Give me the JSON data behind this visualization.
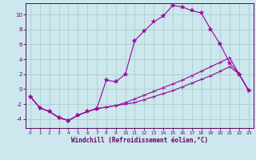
{
  "xlabel": "Windchill (Refroidissement éolien,°C)",
  "background_color": "#cce8ee",
  "grid_color": "#aacccc",
  "line_color": "#990099",
  "spine_color": "#660066",
  "xlim": [
    -0.5,
    23.5
  ],
  "ylim": [
    -5.2,
    11.5
  ],
  "yticks": [
    -4,
    -2,
    0,
    2,
    4,
    6,
    8,
    10
  ],
  "xticks": [
    0,
    1,
    2,
    3,
    4,
    5,
    6,
    7,
    8,
    9,
    10,
    11,
    12,
    13,
    14,
    15,
    16,
    17,
    18,
    19,
    20,
    21,
    22,
    23
  ],
  "line1_x": [
    0,
    1,
    2,
    3,
    4,
    5,
    6,
    7,
    8,
    9,
    10,
    11,
    12,
    13,
    14,
    15,
    16,
    17,
    18,
    19,
    20,
    21,
    22,
    23
  ],
  "line1_y": [
    -1.0,
    -2.5,
    -3.0,
    -3.8,
    -4.2,
    -3.5,
    -3.0,
    -2.6,
    1.2,
    1.0,
    2.0,
    6.5,
    7.8,
    9.0,
    9.8,
    11.2,
    11.0,
    10.5,
    10.2,
    8.0,
    6.0,
    3.5,
    2.0,
    -0.2
  ],
  "line2_x": [
    0,
    1,
    2,
    3,
    4,
    5,
    6,
    7,
    8,
    9,
    10,
    11,
    12,
    13,
    14,
    15,
    16,
    17,
    18,
    19,
    20,
    21,
    22,
    23
  ],
  "line2_y": [
    -1.0,
    -2.5,
    -3.0,
    -3.8,
    -4.2,
    -3.5,
    -3.0,
    -2.6,
    -2.4,
    -2.2,
    -2.0,
    -1.8,
    -1.4,
    -1.0,
    -0.6,
    -0.2,
    0.3,
    0.8,
    1.3,
    1.8,
    2.4,
    3.0,
    2.0,
    -0.2
  ],
  "line3_x": [
    0,
    1,
    2,
    3,
    4,
    5,
    6,
    7,
    8,
    9,
    10,
    11,
    12,
    13,
    14,
    15,
    16,
    17,
    18,
    19,
    20,
    21,
    22,
    23
  ],
  "line3_y": [
    -1.0,
    -2.5,
    -3.0,
    -3.8,
    -4.2,
    -3.5,
    -3.0,
    -2.6,
    -2.4,
    -2.2,
    -1.8,
    -1.3,
    -0.8,
    -0.3,
    0.2,
    0.7,
    1.2,
    1.8,
    2.4,
    3.0,
    3.6,
    4.2,
    2.0,
    -0.2
  ],
  "xlabel_fontsize": 5.5,
  "tick_fontsize": 5.0,
  "lw": 0.8,
  "ms": 2.5
}
